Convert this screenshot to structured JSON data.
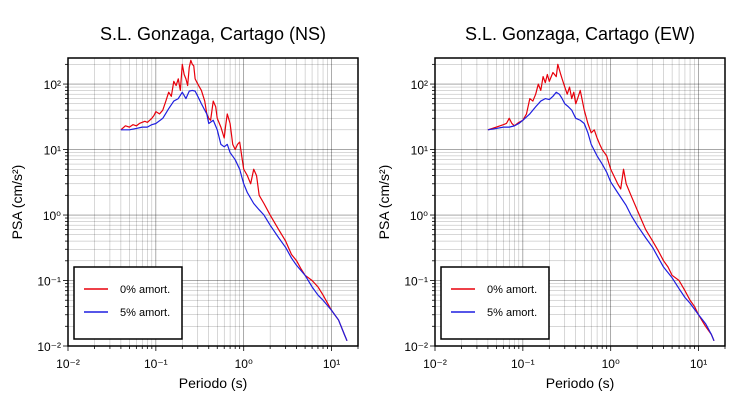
{
  "chart_data": [
    {
      "type": "line",
      "title": "S.L. Gonzaga, Cartago (NS)",
      "xlabel": "Periodo (s)",
      "ylabel": "PSA (cm/s²)",
      "x_scale": "log",
      "y_scale": "log",
      "xlim": [
        0.01,
        20
      ],
      "ylim": [
        0.01,
        250
      ],
      "grid": true,
      "legend_position": "bottom-left",
      "x_ticks": [
        "10⁻²",
        "10⁻¹",
        "10⁰",
        "10¹"
      ],
      "y_ticks": [
        "10⁻²",
        "10⁻¹",
        "10⁰",
        "10¹",
        "10²"
      ],
      "series": [
        {
          "name": "0% amort.",
          "color": "#e8000b",
          "points": [
            [
              0.04,
              20
            ],
            [
              0.045,
              23
            ],
            [
              0.05,
              22
            ],
            [
              0.055,
              24
            ],
            [
              0.06,
              23
            ],
            [
              0.065,
              25
            ],
            [
              0.07,
              26
            ],
            [
              0.075,
              27
            ],
            [
              0.08,
              26
            ],
            [
              0.085,
              28
            ],
            [
              0.09,
              30
            ],
            [
              0.095,
              33
            ],
            [
              0.1,
              38
            ],
            [
              0.11,
              35
            ],
            [
              0.12,
              40
            ],
            [
              0.13,
              55
            ],
            [
              0.14,
              75
            ],
            [
              0.15,
              65
            ],
            [
              0.16,
              110
            ],
            [
              0.17,
              95
            ],
            [
              0.18,
              120
            ],
            [
              0.19,
              80
            ],
            [
              0.2,
              200
            ],
            [
              0.21,
              140
            ],
            [
              0.22,
              120
            ],
            [
              0.23,
              95
            ],
            [
              0.24,
              180
            ],
            [
              0.25,
              230
            ],
            [
              0.26,
              200
            ],
            [
              0.27,
              190
            ],
            [
              0.28,
              120
            ],
            [
              0.3,
              100
            ],
            [
              0.33,
              80
            ],
            [
              0.36,
              55
            ],
            [
              0.38,
              35
            ],
            [
              0.4,
              30
            ],
            [
              0.42,
              28
            ],
            [
              0.45,
              55
            ],
            [
              0.48,
              45
            ],
            [
              0.5,
              30
            ],
            [
              0.55,
              22
            ],
            [
              0.6,
              15
            ],
            [
              0.62,
              22
            ],
            [
              0.65,
              35
            ],
            [
              0.7,
              25
            ],
            [
              0.75,
              12
            ],
            [
              0.8,
              10
            ],
            [
              0.85,
              12
            ],
            [
              0.9,
              13
            ],
            [
              1.0,
              5
            ],
            [
              1.1,
              4
            ],
            [
              1.2,
              3
            ],
            [
              1.3,
              5
            ],
            [
              1.4,
              4
            ],
            [
              1.5,
              2
            ],
            [
              1.7,
              1.5
            ],
            [
              2.0,
              1.0
            ],
            [
              2.5,
              0.6
            ],
            [
              3.0,
              0.4
            ],
            [
              3.5,
              0.25
            ],
            [
              4.0,
              0.2
            ],
            [
              4.5,
              0.15
            ],
            [
              5.0,
              0.12
            ],
            [
              6.0,
              0.1
            ],
            [
              7.0,
              0.08
            ],
            [
              8.0,
              0.06
            ],
            [
              9.0,
              0.045
            ],
            [
              10.0,
              0.035
            ],
            [
              12.0,
              0.025
            ],
            [
              14.0,
              0.015
            ],
            [
              15.0,
              0.012
            ]
          ]
        },
        {
          "name": "5% amort.",
          "color": "#1f1fe0",
          "points": [
            [
              0.04,
              20
            ],
            [
              0.05,
              20
            ],
            [
              0.06,
              21
            ],
            [
              0.07,
              22
            ],
            [
              0.08,
              22
            ],
            [
              0.09,
              24
            ],
            [
              0.1,
              25
            ],
            [
              0.12,
              30
            ],
            [
              0.14,
              42
            ],
            [
              0.16,
              55
            ],
            [
              0.18,
              60
            ],
            [
              0.2,
              75
            ],
            [
              0.22,
              60
            ],
            [
              0.24,
              78
            ],
            [
              0.26,
              80
            ],
            [
              0.28,
              78
            ],
            [
              0.3,
              65
            ],
            [
              0.33,
              50
            ],
            [
              0.36,
              40
            ],
            [
              0.38,
              35
            ],
            [
              0.4,
              25
            ],
            [
              0.45,
              28
            ],
            [
              0.5,
              20
            ],
            [
              0.55,
              12
            ],
            [
              0.6,
              11
            ],
            [
              0.65,
              12
            ],
            [
              0.7,
              9
            ],
            [
              0.8,
              7
            ],
            [
              0.9,
              5
            ],
            [
              1.0,
              3
            ],
            [
              1.1,
              2.2
            ],
            [
              1.3,
              1.5
            ],
            [
              1.5,
              1.2
            ],
            [
              1.7,
              1.0
            ],
            [
              2.0,
              0.7
            ],
            [
              2.5,
              0.45
            ],
            [
              3.0,
              0.32
            ],
            [
              3.5,
              0.22
            ],
            [
              4.0,
              0.17
            ],
            [
              5.0,
              0.12
            ],
            [
              6.0,
              0.08
            ],
            [
              7.0,
              0.06
            ],
            [
              8.0,
              0.05
            ],
            [
              10.0,
              0.035
            ],
            [
              12.0,
              0.025
            ],
            [
              14.0,
              0.015
            ],
            [
              15.0,
              0.012
            ]
          ]
        }
      ]
    },
    {
      "type": "line",
      "title": "S.L. Gonzaga, Cartago (EW)",
      "xlabel": "Periodo (s)",
      "ylabel": "PSA (cm/s²)",
      "x_scale": "log",
      "y_scale": "log",
      "xlim": [
        0.01,
        20
      ],
      "ylim": [
        0.01,
        250
      ],
      "grid": true,
      "legend_position": "bottom-left",
      "x_ticks": [
        "10⁻²",
        "10⁻¹",
        "10⁰",
        "10¹"
      ],
      "y_ticks": [
        "10⁻²",
        "10⁻¹",
        "10⁰",
        "10¹",
        "10²"
      ],
      "series": [
        {
          "name": "0% amort.",
          "color": "#e8000b",
          "points": [
            [
              0.04,
              20
            ],
            [
              0.05,
              22
            ],
            [
              0.06,
              24
            ],
            [
              0.065,
              25
            ],
            [
              0.07,
              30
            ],
            [
              0.075,
              25
            ],
            [
              0.08,
              23
            ],
            [
              0.09,
              26
            ],
            [
              0.1,
              28
            ],
            [
              0.11,
              35
            ],
            [
              0.12,
              60
            ],
            [
              0.13,
              55
            ],
            [
              0.14,
              70
            ],
            [
              0.15,
              100
            ],
            [
              0.16,
              80
            ],
            [
              0.17,
              130
            ],
            [
              0.18,
              105
            ],
            [
              0.19,
              140
            ],
            [
              0.2,
              110
            ],
            [
              0.22,
              150
            ],
            [
              0.24,
              130
            ],
            [
              0.25,
              200
            ],
            [
              0.27,
              140
            ],
            [
              0.28,
              120
            ],
            [
              0.3,
              90
            ],
            [
              0.32,
              70
            ],
            [
              0.34,
              90
            ],
            [
              0.36,
              60
            ],
            [
              0.38,
              75
            ],
            [
              0.4,
              50
            ],
            [
              0.42,
              60
            ],
            [
              0.45,
              80
            ],
            [
              0.5,
              40
            ],
            [
              0.55,
              25
            ],
            [
              0.6,
              18
            ],
            [
              0.65,
              20
            ],
            [
              0.7,
              15
            ],
            [
              0.75,
              12
            ],
            [
              0.8,
              10
            ],
            [
              0.9,
              8
            ],
            [
              1.0,
              5
            ],
            [
              1.2,
              3
            ],
            [
              1.3,
              2.5
            ],
            [
              1.4,
              5
            ],
            [
              1.5,
              3
            ],
            [
              1.7,
              2.0
            ],
            [
              2.0,
              1.2
            ],
            [
              2.5,
              0.6
            ],
            [
              3.0,
              0.4
            ],
            [
              3.5,
              0.28
            ],
            [
              4.0,
              0.2
            ],
            [
              4.5,
              0.16
            ],
            [
              5.0,
              0.12
            ],
            [
              6.0,
              0.1
            ],
            [
              7.0,
              0.07
            ],
            [
              8.0,
              0.05
            ],
            [
              9.0,
              0.04
            ],
            [
              10.0,
              0.03
            ],
            [
              12.0,
              0.02
            ],
            [
              14.0,
              0.015
            ],
            [
              15.0,
              0.012
            ]
          ]
        },
        {
          "name": "5% amort.",
          "color": "#1f1fe0",
          "points": [
            [
              0.04,
              20
            ],
            [
              0.05,
              21
            ],
            [
              0.06,
              22
            ],
            [
              0.07,
              22
            ],
            [
              0.08,
              23
            ],
            [
              0.09,
              25
            ],
            [
              0.1,
              28
            ],
            [
              0.12,
              35
            ],
            [
              0.14,
              45
            ],
            [
              0.16,
              55
            ],
            [
              0.18,
              60
            ],
            [
              0.2,
              58
            ],
            [
              0.22,
              65
            ],
            [
              0.24,
              75
            ],
            [
              0.26,
              70
            ],
            [
              0.28,
              60
            ],
            [
              0.3,
              50
            ],
            [
              0.33,
              45
            ],
            [
              0.36,
              40
            ],
            [
              0.4,
              30
            ],
            [
              0.45,
              28
            ],
            [
              0.5,
              25
            ],
            [
              0.55,
              18
            ],
            [
              0.6,
              12
            ],
            [
              0.7,
              8
            ],
            [
              0.8,
              6
            ],
            [
              0.9,
              4.5
            ],
            [
              1.0,
              3.2
            ],
            [
              1.2,
              2.2
            ],
            [
              1.5,
              1.4
            ],
            [
              1.7,
              1.0
            ],
            [
              2.0,
              0.7
            ],
            [
              2.5,
              0.45
            ],
            [
              3.0,
              0.32
            ],
            [
              3.5,
              0.22
            ],
            [
              4.0,
              0.16
            ],
            [
              5.0,
              0.11
            ],
            [
              6.0,
              0.075
            ],
            [
              7.0,
              0.055
            ],
            [
              8.0,
              0.045
            ],
            [
              10.0,
              0.03
            ],
            [
              12.0,
              0.022
            ],
            [
              14.0,
              0.015
            ],
            [
              15.0,
              0.012
            ]
          ]
        }
      ]
    }
  ]
}
